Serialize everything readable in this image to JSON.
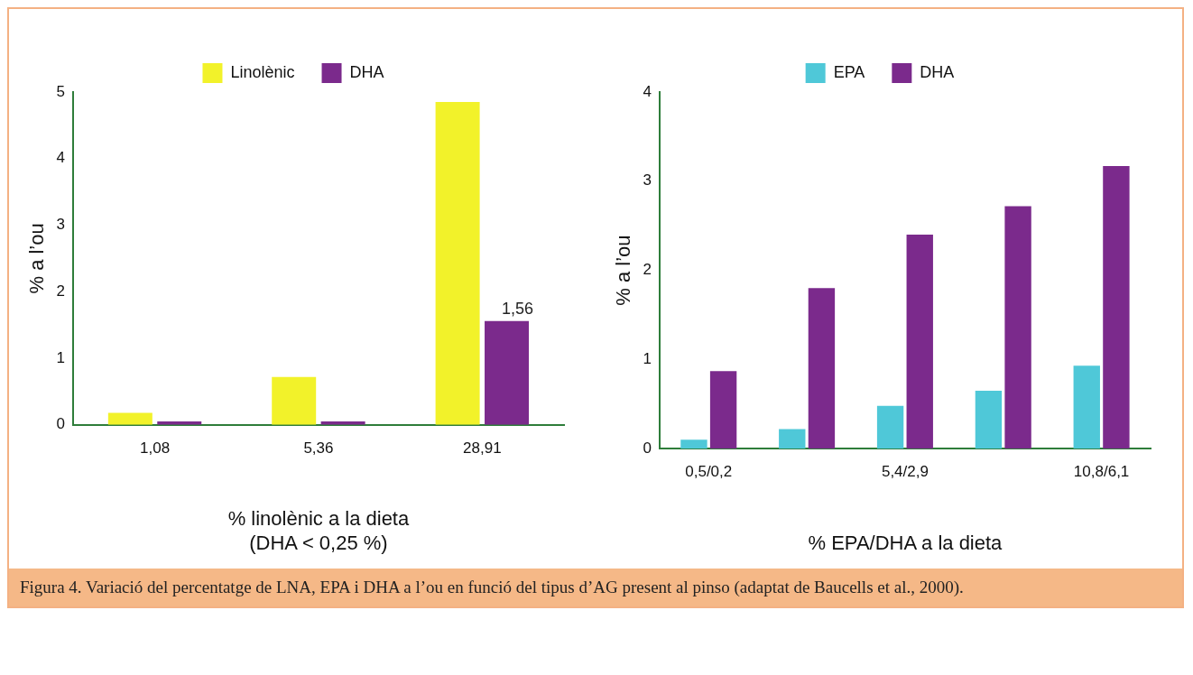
{
  "chart_data": [
    {
      "type": "bar",
      "categories": [
        "1,08",
        "5,36",
        "28,91"
      ],
      "xlabel": "% linolènic a la dieta\n(DHA < 0,25 %)",
      "ylabel": "% a l’ou",
      "ylim": [
        0,
        5
      ],
      "yticks": [
        0,
        1,
        2,
        3,
        4,
        5
      ],
      "grid": false,
      "legend": "top",
      "series": [
        {
          "name": "Linolènic",
          "color": "#f2f22a",
          "values": [
            0.18,
            0.72,
            4.85
          ]
        },
        {
          "name": "DHA",
          "color": "#7b2a8c",
          "values": [
            0.05,
            0.05,
            1.56
          ],
          "value_labels": [
            null,
            null,
            "1,56"
          ]
        }
      ]
    },
    {
      "type": "bar",
      "categories": [
        "0,5/0,2",
        null,
        "5,4/2,9",
        null,
        "10,8/6,1"
      ],
      "xlabel": "% EPA/DHA a la dieta",
      "ylabel": "% a l’ou",
      "ylim": [
        0,
        4
      ],
      "yticks": [
        0,
        1,
        2,
        3,
        4
      ],
      "grid": false,
      "legend": "top",
      "annotations": [
        "Figura 4. Variació del percentatge de LNA, EPA i DHA a l’ou en funció del tipus d’AG present al pinso (adaptat de Baucells et al., 2000)."
      ],
      "series": [
        {
          "name": "EPA",
          "color": "#4fc8d8",
          "values": [
            0.1,
            0.22,
            0.48,
            0.65,
            0.93
          ]
        },
        {
          "name": "DHA",
          "color": "#7b2a8c",
          "values": [
            0.87,
            1.8,
            2.4,
            2.72,
            3.17
          ]
        }
      ]
    }
  ]
}
